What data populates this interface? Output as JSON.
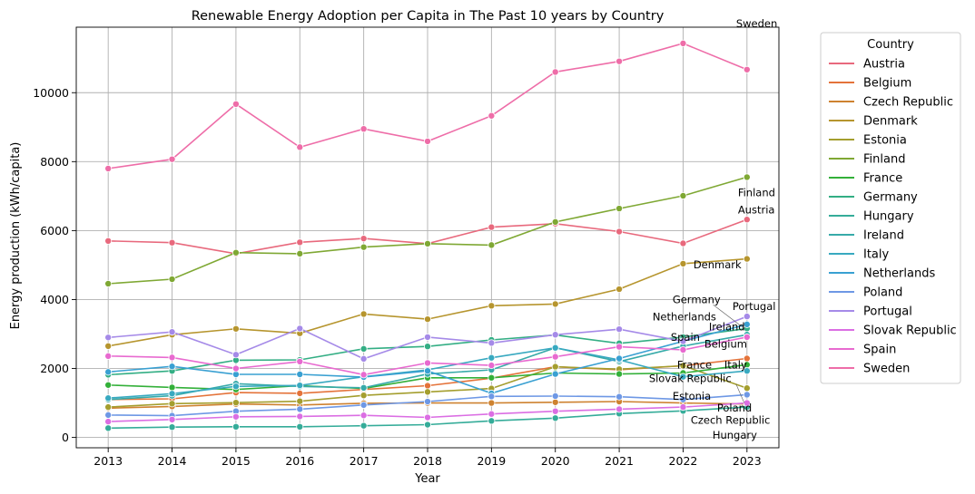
{
  "chart_data": {
    "type": "line",
    "title": "Renewable Energy Adoption per Capita in The Past 10 years by Country",
    "xlabel": "Year",
    "ylabel": "Energy production (kWh/capita)",
    "x": [
      "2013",
      "2014",
      "2015",
      "2016",
      "2017",
      "2018",
      "2019",
      "2020",
      "2021",
      "2022",
      "2023"
    ],
    "xlim": [
      2012.5,
      2023.5
    ],
    "ylim": [
      -300,
      11900
    ],
    "yticks": [
      0,
      2000,
      4000,
      6000,
      8000,
      10000
    ],
    "ytick_labels": [
      "0",
      "2000",
      "4000",
      "6000",
      "8000",
      "10000"
    ],
    "grid": true,
    "legend": {
      "title": "Country",
      "placement": "outside-right"
    },
    "series": [
      {
        "name": "Austria",
        "color": "#e8697d",
        "values": [
          5700,
          5650,
          5330,
          5660,
          5770,
          5620,
          6100,
          6200,
          5970,
          5630,
          6320
        ],
        "label": "Austria"
      },
      {
        "name": "Belgium",
        "color": "#e4733a",
        "values": [
          1100,
          1120,
          1300,
          1280,
          1390,
          1500,
          1720,
          2050,
          1960,
          2080,
          2290
        ],
        "label": "Belgium"
      },
      {
        "name": "Czech Republic",
        "color": "#ce8230",
        "values": [
          850,
          900,
          970,
          940,
          990,
          1000,
          1000,
          1020,
          1040,
          1000,
          970
        ],
        "label": "Czech Republic"
      },
      {
        "name": "Denmark",
        "color": "#b6952e",
        "values": [
          2650,
          2980,
          3150,
          3020,
          3580,
          3430,
          3820,
          3870,
          4300,
          5040,
          5180
        ],
        "label": "Denmark"
      },
      {
        "name": "Estonia",
        "color": "#a49e2e",
        "values": [
          880,
          980,
          1010,
          1050,
          1220,
          1320,
          1420,
          2050,
          1980,
          2080,
          1430
        ],
        "label": "Estonia"
      },
      {
        "name": "Finland",
        "color": "#7fa834",
        "values": [
          4460,
          4590,
          5360,
          5330,
          5520,
          5620,
          5580,
          6250,
          6640,
          7010,
          7550
        ],
        "label": "Finland"
      },
      {
        "name": "France",
        "color": "#33b039",
        "values": [
          1520,
          1450,
          1390,
          1500,
          1420,
          1730,
          1730,
          1870,
          1840,
          1870,
          2110
        ],
        "label": "France"
      },
      {
        "name": "Germany",
        "color": "#33ae84",
        "values": [
          1820,
          1930,
          2240,
          2250,
          2570,
          2640,
          2830,
          2970,
          2730,
          2910,
          3160
        ],
        "label": "Germany"
      },
      {
        "name": "Hungary",
        "color": "#35ac99",
        "values": [
          270,
          300,
          310,
          310,
          340,
          370,
          480,
          560,
          690,
          770,
          880
        ],
        "label": "Hungary"
      },
      {
        "name": "Ireland",
        "color": "#37aaa9",
        "values": [
          1100,
          1210,
          1560,
          1480,
          1440,
          1840,
          1960,
          2600,
          2200,
          2650,
          2980
        ],
        "label": "Ireland"
      },
      {
        "name": "Italy",
        "color": "#38a9c0",
        "values": [
          1140,
          1270,
          1480,
          1510,
          1760,
          1960,
          2310,
          2600,
          2250,
          1760,
          1930
        ],
        "label": "Italy"
      },
      {
        "name": "Netherlands",
        "color": "#39a0d2",
        "values": [
          1900,
          2060,
          1830,
          1830,
          1750,
          1930,
          1280,
          1840,
          2290,
          2790,
          3280
        ],
        "label": "Netherlands"
      },
      {
        "name": "Poland",
        "color": "#6e98e5",
        "values": [
          650,
          630,
          760,
          820,
          940,
          1040,
          1190,
          1200,
          1180,
          1100,
          1240
        ],
        "label": "Poland"
      },
      {
        "name": "Portugal",
        "color": "#a58ae8",
        "values": [
          2900,
          3060,
          2400,
          3160,
          2280,
          2910,
          2740,
          2980,
          3140,
          2790,
          3510
        ],
        "label": "Portugal"
      },
      {
        "name": "Slovak Republic",
        "color": "#db6ee3",
        "values": [
          460,
          520,
          600,
          610,
          640,
          580,
          680,
          760,
          820,
          880,
          1000
        ],
        "label": "Slovak Republic"
      },
      {
        "name": "Spain",
        "color": "#e86ad0",
        "values": [
          2360,
          2320,
          2000,
          2200,
          1820,
          2160,
          2090,
          2340,
          2630,
          2540,
          2910
        ],
        "label": "Spain"
      },
      {
        "name": "Sweden",
        "color": "#ee6da8",
        "values": [
          7800,
          8070,
          9670,
          8420,
          8950,
          8590,
          9330,
          10600,
          10910,
          11430,
          10670
        ],
        "label": "Sweden"
      }
    ]
  }
}
